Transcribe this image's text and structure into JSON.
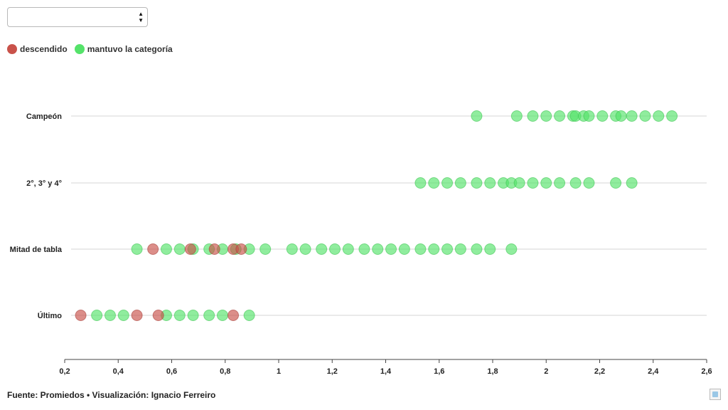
{
  "filter": {
    "value": ""
  },
  "legend": [
    {
      "label": "descendido",
      "color": "#c9524a"
    },
    {
      "label": "mantuvo la categoría",
      "color": "#55e36a"
    }
  ],
  "footer": {
    "text": "Fuente: Promiedos • Visualización: Ignacio Ferreiro"
  },
  "chart_data": {
    "type": "scatter",
    "title": "",
    "xlabel": "",
    "ylabel": "",
    "xlim": [
      0.2,
      2.6
    ],
    "xticks": [
      "0,2",
      "0,4",
      "0,6",
      "0,8",
      "1",
      "1,2",
      "1,4",
      "1,6",
      "1,8",
      "2",
      "2,2",
      "2,4",
      "2,6"
    ],
    "xtick_values": [
      0.2,
      0.4,
      0.6,
      0.8,
      1.0,
      1.2,
      1.4,
      1.6,
      1.8,
      2.0,
      2.2,
      2.4,
      2.6
    ],
    "categories": [
      "Campeón",
      "2°, 3° y 4°",
      "Mitad de tabla",
      "Último"
    ],
    "grid": "horizontal",
    "legend_position": "top-left",
    "series": [
      {
        "name": "descendido",
        "color": "#c9524a",
        "points": [
          {
            "category": "Mitad de tabla",
            "x": 0.53
          },
          {
            "category": "Mitad de tabla",
            "x": 0.67
          },
          {
            "category": "Mitad de tabla",
            "x": 0.76
          },
          {
            "category": "Mitad de tabla",
            "x": 0.83
          },
          {
            "category": "Mitad de tabla",
            "x": 0.86
          },
          {
            "category": "Último",
            "x": 0.26
          },
          {
            "category": "Último",
            "x": 0.47
          },
          {
            "category": "Último",
            "x": 0.55
          },
          {
            "category": "Último",
            "x": 0.83
          }
        ]
      },
      {
        "name": "mantuvo la categoría",
        "color": "#55e36a",
        "points": [
          {
            "category": "Campeón",
            "x": 1.74
          },
          {
            "category": "Campeón",
            "x": 1.89
          },
          {
            "category": "Campeón",
            "x": 1.95
          },
          {
            "category": "Campeón",
            "x": 2.0
          },
          {
            "category": "Campeón",
            "x": 2.05
          },
          {
            "category": "Campeón",
            "x": 2.1
          },
          {
            "category": "Campeón",
            "x": 2.11
          },
          {
            "category": "Campeón",
            "x": 2.14
          },
          {
            "category": "Campeón",
            "x": 2.16
          },
          {
            "category": "Campeón",
            "x": 2.21
          },
          {
            "category": "Campeón",
            "x": 2.26
          },
          {
            "category": "Campeón",
            "x": 2.28
          },
          {
            "category": "Campeón",
            "x": 2.32
          },
          {
            "category": "Campeón",
            "x": 2.37
          },
          {
            "category": "Campeón",
            "x": 2.42
          },
          {
            "category": "Campeón",
            "x": 2.47
          },
          {
            "category": "2°, 3° y 4°",
            "x": 1.53
          },
          {
            "category": "2°, 3° y 4°",
            "x": 1.58
          },
          {
            "category": "2°, 3° y 4°",
            "x": 1.63
          },
          {
            "category": "2°, 3° y 4°",
            "x": 1.68
          },
          {
            "category": "2°, 3° y 4°",
            "x": 1.74
          },
          {
            "category": "2°, 3° y 4°",
            "x": 1.79
          },
          {
            "category": "2°, 3° y 4°",
            "x": 1.84
          },
          {
            "category": "2°, 3° y 4°",
            "x": 1.87
          },
          {
            "category": "2°, 3° y 4°",
            "x": 1.9
          },
          {
            "category": "2°, 3° y 4°",
            "x": 1.95
          },
          {
            "category": "2°, 3° y 4°",
            "x": 2.0
          },
          {
            "category": "2°, 3° y 4°",
            "x": 2.05
          },
          {
            "category": "2°, 3° y 4°",
            "x": 2.11
          },
          {
            "category": "2°, 3° y 4°",
            "x": 2.16
          },
          {
            "category": "2°, 3° y 4°",
            "x": 2.26
          },
          {
            "category": "2°, 3° y 4°",
            "x": 2.32
          },
          {
            "category": "Mitad de tabla",
            "x": 0.47
          },
          {
            "category": "Mitad de tabla",
            "x": 0.58
          },
          {
            "category": "Mitad de tabla",
            "x": 0.63
          },
          {
            "category": "Mitad de tabla",
            "x": 0.68
          },
          {
            "category": "Mitad de tabla",
            "x": 0.74
          },
          {
            "category": "Mitad de tabla",
            "x": 0.79
          },
          {
            "category": "Mitad de tabla",
            "x": 0.84
          },
          {
            "category": "Mitad de tabla",
            "x": 0.89
          },
          {
            "category": "Mitad de tabla",
            "x": 0.95
          },
          {
            "category": "Mitad de tabla",
            "x": 1.05
          },
          {
            "category": "Mitad de tabla",
            "x": 1.1
          },
          {
            "category": "Mitad de tabla",
            "x": 1.16
          },
          {
            "category": "Mitad de tabla",
            "x": 1.21
          },
          {
            "category": "Mitad de tabla",
            "x": 1.26
          },
          {
            "category": "Mitad de tabla",
            "x": 1.32
          },
          {
            "category": "Mitad de tabla",
            "x": 1.37
          },
          {
            "category": "Mitad de tabla",
            "x": 1.42
          },
          {
            "category": "Mitad de tabla",
            "x": 1.47
          },
          {
            "category": "Mitad de tabla",
            "x": 1.53
          },
          {
            "category": "Mitad de tabla",
            "x": 1.58
          },
          {
            "category": "Mitad de tabla",
            "x": 1.63
          },
          {
            "category": "Mitad de tabla",
            "x": 1.68
          },
          {
            "category": "Mitad de tabla",
            "x": 1.74
          },
          {
            "category": "Mitad de tabla",
            "x": 1.79
          },
          {
            "category": "Mitad de tabla",
            "x": 1.87
          },
          {
            "category": "Último",
            "x": 0.32
          },
          {
            "category": "Último",
            "x": 0.37
          },
          {
            "category": "Último",
            "x": 0.42
          },
          {
            "category": "Último",
            "x": 0.58
          },
          {
            "category": "Último",
            "x": 0.63
          },
          {
            "category": "Último",
            "x": 0.68
          },
          {
            "category": "Último",
            "x": 0.74
          },
          {
            "category": "Último",
            "x": 0.79
          },
          {
            "category": "Último",
            "x": 0.89
          }
        ]
      }
    ]
  }
}
